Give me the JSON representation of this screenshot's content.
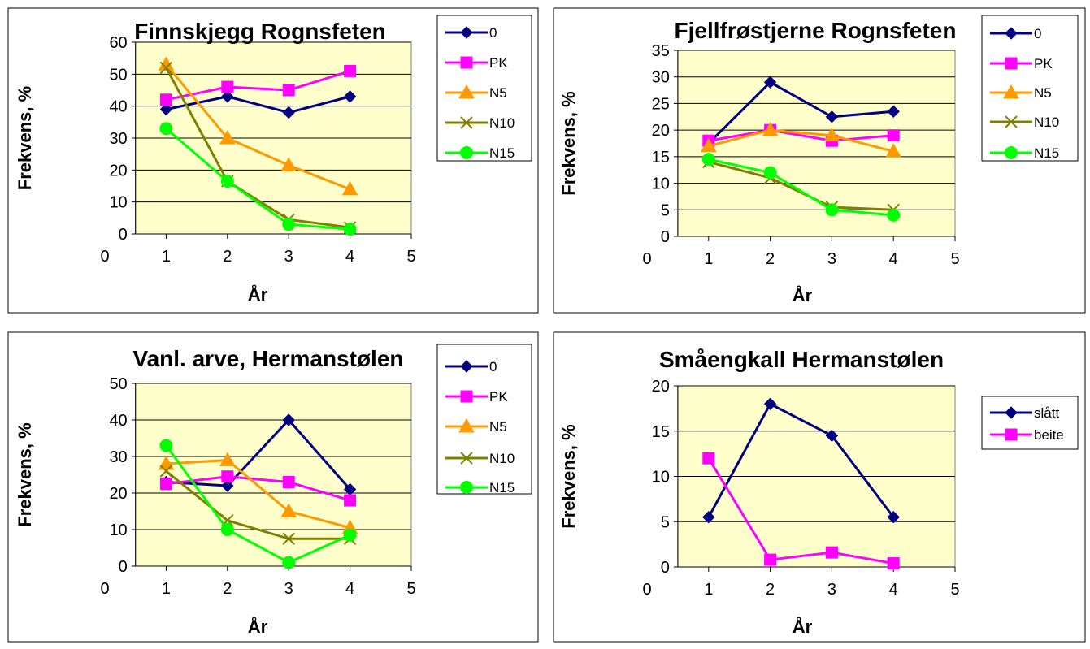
{
  "chart_data": [
    {
      "type": "line",
      "title": "Finnskjegg Rognsfeten",
      "xlabel": "År",
      "ylabel": "Frekvens, %",
      "xlim": [
        0,
        5
      ],
      "ylim": [
        0,
        60
      ],
      "xticks": [
        0,
        1,
        2,
        3,
        4,
        5
      ],
      "yticks": [
        0,
        10,
        20,
        30,
        40,
        50,
        60
      ],
      "xtick_labels": [
        "0",
        "1",
        "2",
        "3",
        "4",
        "5"
      ],
      "ytick_labels": [
        "0",
        "10",
        "20",
        "30",
        "40",
        "50",
        "60"
      ],
      "grid": true,
      "legend": "right",
      "x": [
        1,
        2,
        3,
        4
      ],
      "series": [
        {
          "name": "0",
          "values": [
            39,
            43,
            38,
            43
          ],
          "color": "#000080",
          "marker": "diamond"
        },
        {
          "name": "PK",
          "values": [
            42,
            46,
            45,
            51
          ],
          "color": "#FF00FF",
          "marker": "square"
        },
        {
          "name": "N5",
          "values": [
            53,
            30,
            21.5,
            14
          ],
          "color": "#FF9900",
          "marker": "triangle"
        },
        {
          "name": "N10",
          "values": [
            52,
            16.5,
            4.5,
            2
          ],
          "color": "#808000",
          "marker": "x"
        },
        {
          "name": "N15",
          "values": [
            33,
            16.5,
            3,
            1.5
          ],
          "color": "#00FF00",
          "marker": "circle"
        }
      ]
    },
    {
      "type": "line",
      "title": "Fjellfrøstjerne Rognsfeten",
      "xlabel": "År",
      "ylabel": "Frekvens, %",
      "xlim": [
        0,
        5
      ],
      "ylim": [
        0,
        35
      ],
      "xticks": [
        0,
        1,
        2,
        3,
        4,
        5
      ],
      "yticks": [
        0,
        5,
        10,
        15,
        20,
        25,
        30,
        35
      ],
      "xtick_labels": [
        "0",
        "1",
        "2",
        "3",
        "4",
        "5"
      ],
      "ytick_labels": [
        "0",
        "5",
        "10",
        "15",
        "20",
        "25",
        "30",
        "35"
      ],
      "grid": true,
      "legend": "right",
      "x": [
        1,
        2,
        3,
        4
      ],
      "series": [
        {
          "name": "0",
          "values": [
            17.5,
            29,
            22.5,
            23.5
          ],
          "color": "#000080",
          "marker": "diamond"
        },
        {
          "name": "PK",
          "values": [
            18,
            20,
            18,
            19
          ],
          "color": "#FF00FF",
          "marker": "square"
        },
        {
          "name": "N5",
          "values": [
            17,
            20,
            19,
            16
          ],
          "color": "#FF9900",
          "marker": "triangle"
        },
        {
          "name": "N10",
          "values": [
            14,
            11,
            5.5,
            5
          ],
          "color": "#808000",
          "marker": "x"
        },
        {
          "name": "N15",
          "values": [
            14.5,
            12,
            5,
            4
          ],
          "color": "#00FF00",
          "marker": "circle"
        }
      ]
    },
    {
      "type": "line",
      "title": "Vanl. arve, Hermanstølen",
      "xlabel": "År",
      "ylabel": "Frekvens, %",
      "xlim": [
        0,
        5
      ],
      "ylim": [
        0,
        50
      ],
      "xticks": [
        0,
        1,
        2,
        3,
        4,
        5
      ],
      "yticks": [
        0,
        10,
        20,
        30,
        40,
        50
      ],
      "xtick_labels": [
        "0",
        "1",
        "2",
        "3",
        "4",
        "5"
      ],
      "ytick_labels": [
        "0",
        "10",
        "20",
        "30",
        "40",
        "50"
      ],
      "grid": true,
      "legend": "right",
      "x": [
        1,
        2,
        3,
        4
      ],
      "series": [
        {
          "name": "0",
          "values": [
            23,
            22,
            40,
            21
          ],
          "color": "#000080",
          "marker": "diamond"
        },
        {
          "name": "PK",
          "values": [
            22.5,
            24.5,
            23,
            18
          ],
          "color": "#FF00FF",
          "marker": "square"
        },
        {
          "name": "N5",
          "values": [
            28,
            29,
            15,
            10.5
          ],
          "color": "#FF9900",
          "marker": "triangle"
        },
        {
          "name": "N10",
          "values": [
            26,
            12.5,
            7.5,
            7.5
          ],
          "color": "#808000",
          "marker": "x"
        },
        {
          "name": "N15",
          "values": [
            33,
            10,
            1,
            8.5
          ],
          "color": "#00FF00",
          "marker": "circle"
        }
      ]
    },
    {
      "type": "line",
      "title": "Småengkall Hermanstølen",
      "xlabel": "År",
      "ylabel": "Frekvens, %",
      "xlim": [
        0,
        5
      ],
      "ylim": [
        0,
        20
      ],
      "xticks": [
        0,
        1,
        2,
        3,
        4,
        5
      ],
      "yticks": [
        0,
        5,
        10,
        15,
        20
      ],
      "xtick_labels": [
        "0",
        "1",
        "2",
        "3",
        "4",
        "5"
      ],
      "ytick_labels": [
        "0",
        "5",
        "10",
        "15",
        "20"
      ],
      "grid": true,
      "legend": "right",
      "x": [
        1,
        2,
        3,
        4
      ],
      "series": [
        {
          "name": "slått",
          "values": [
            5.5,
            18,
            14.5,
            5.5
          ],
          "color": "#000080",
          "marker": "diamond"
        },
        {
          "name": "beite",
          "values": [
            12,
            0.8,
            1.6,
            0.4
          ],
          "color": "#FF00FF",
          "marker": "square"
        }
      ]
    }
  ]
}
